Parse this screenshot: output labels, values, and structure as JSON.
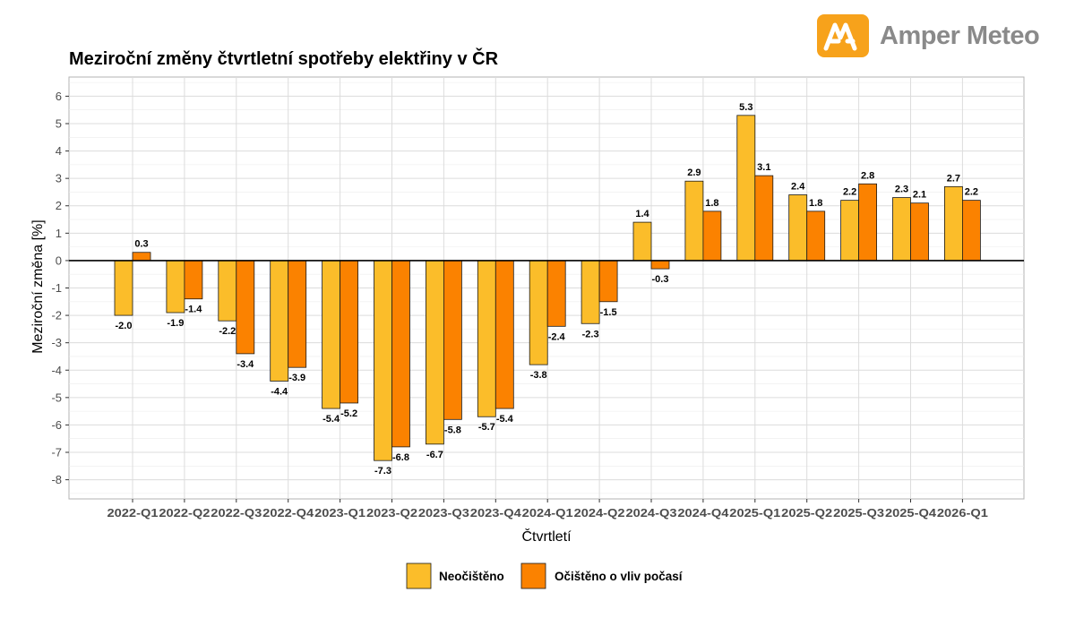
{
  "logo": {
    "text": "Amper Meteo",
    "brand_color": "#f7a21b",
    "text_color": "#8a8a8a"
  },
  "chart_data": {
    "type": "bar",
    "title": "Meziroční změny čtvrtletní spotřeby elektřiny v ČR",
    "xlabel": "Čtvrtletí",
    "ylabel": "Meziroční změna [%]",
    "ylim": [
      -8.7,
      6.7
    ],
    "yticks": [
      6,
      5,
      4,
      3,
      2,
      1,
      0,
      -1,
      -2,
      -3,
      -4,
      -5,
      -6,
      -7,
      -8
    ],
    "grid": true,
    "legend_position": "bottom",
    "categories": [
      "2022-Q1",
      "2022-Q2",
      "2022-Q3",
      "2022-Q4",
      "2023-Q1",
      "2023-Q2",
      "2023-Q3",
      "2023-Q4",
      "2024-Q1",
      "2024-Q2",
      "2024-Q3",
      "2024-Q4",
      "2025-Q1",
      "2025-Q2",
      "2025-Q3",
      "2025-Q4",
      "2026-Q1"
    ],
    "series": [
      {
        "name": "Neočištěno",
        "color": "#fbbd2a",
        "values": [
          -2.0,
          -1.9,
          -2.2,
          -4.4,
          -5.4,
          -7.3,
          -6.7,
          -5.7,
          -3.8,
          -2.3,
          1.4,
          2.9,
          5.3,
          2.4,
          2.2,
          2.3,
          2.7
        ],
        "labels": [
          "-2.0",
          "-1.9",
          "-2.2",
          "-4.4",
          "-5.4",
          "-7.3",
          "-6.7",
          "-5.7",
          "-3.8",
          "-2.3",
          "1.4",
          "2.9",
          "5.3",
          "2.4",
          "2.2",
          "2.3",
          "2.7"
        ]
      },
      {
        "name": "Očištěno o vliv počasí",
        "color": "#fb8200",
        "values": [
          0.3,
          -1.4,
          -3.4,
          -3.9,
          -5.2,
          -6.8,
          -5.8,
          -5.4,
          -2.4,
          -1.5,
          -0.3,
          1.8,
          3.1,
          1.8,
          2.8,
          2.1,
          2.2
        ],
        "labels": [
          "0.3",
          "-1.4",
          "-3.4",
          "-3.9",
          "-5.2",
          "-6.8",
          "-5.8",
          "-5.4",
          "-2.4",
          "-1.5",
          "-0.3",
          "1.8",
          "3.1",
          "1.8",
          "2.8",
          "2.1",
          "2.2"
        ]
      }
    ]
  }
}
